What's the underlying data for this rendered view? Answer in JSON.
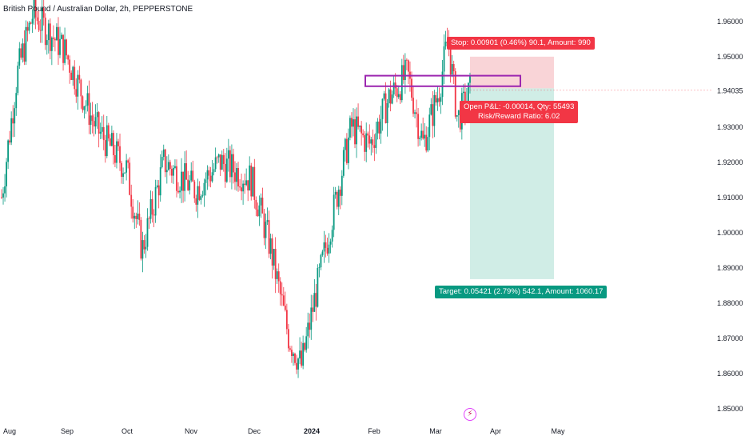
{
  "title": "British Pound / Australian Dollar, 2h, PEPPERSTONE",
  "chart_data": {
    "type": "candlestick",
    "symbol": "British Pound / Australian Dollar",
    "interval": "2h",
    "exchange": "PEPPERSTONE",
    "x_ticks": [
      "Aug",
      "Sep",
      "Oct",
      "Nov",
      "Dec",
      "2024",
      "Feb",
      "Mar",
      "Apr",
      "May"
    ],
    "y_ticks": [
      "1.96000",
      "1.95000",
      "1.94035",
      "1.93000",
      "1.92000",
      "1.91000",
      "1.90000",
      "1.89000",
      "1.88000",
      "1.87000",
      "1.86000",
      "1.85000"
    ],
    "ylim": [
      1.846,
      1.966
    ],
    "current_price": 1.94035,
    "trend_points": [
      {
        "t": 0.0,
        "v": 1.91
      },
      {
        "t": 0.5,
        "v": 1.945
      },
      {
        "t": 1.0,
        "v": 1.962
      },
      {
        "t": 2.0,
        "v": 1.952
      },
      {
        "t": 3.0,
        "v": 1.93
      },
      {
        "t": 4.0,
        "v": 1.918
      },
      {
        "t": 4.5,
        "v": 1.895
      },
      {
        "t": 5.2,
        "v": 1.92
      },
      {
        "t": 6.2,
        "v": 1.912
      },
      {
        "t": 7.0,
        "v": 1.92
      },
      {
        "t": 8.0,
        "v": 1.915
      },
      {
        "t": 8.6,
        "v": 1.896
      },
      {
        "t": 9.2,
        "v": 1.87
      },
      {
        "t": 9.6,
        "v": 1.862
      },
      {
        "t": 10.0,
        "v": 1.88
      },
      {
        "t": 10.6,
        "v": 1.905
      },
      {
        "t": 11.2,
        "v": 1.93
      },
      {
        "t": 11.8,
        "v": 1.925
      },
      {
        "t": 12.4,
        "v": 1.938
      },
      {
        "t": 13.0,
        "v": 1.945
      },
      {
        "t": 13.5,
        "v": 1.925
      },
      {
        "t": 14.0,
        "v": 1.94
      },
      {
        "t": 14.3,
        "v": 1.955
      },
      {
        "t": 14.6,
        "v": 1.932
      },
      {
        "t": 15.0,
        "v": 1.94
      }
    ],
    "position": {
      "entry": 1.9409,
      "stop": 1.9499,
      "target": 1.8867,
      "stop_label": "Stop: 0.00901 (0.46%) 90.1, Amount: 990",
      "target_label": "Target: 0.05421 (2.79%) 542.1, Amount: 1060.17",
      "pnl_label": "Open P&L: -0.00014, Qty: 55493",
      "rr_label": "Risk/Reward Ratio: 6.02"
    },
    "zone": {
      "top": 1.9445,
      "bottom": 1.9415
    },
    "colors": {
      "up": "#089981",
      "down": "#f23645",
      "zone": "#9c27b0",
      "stop_fill": "#f7c5c9",
      "target_fill": "#b7e3d9"
    }
  }
}
